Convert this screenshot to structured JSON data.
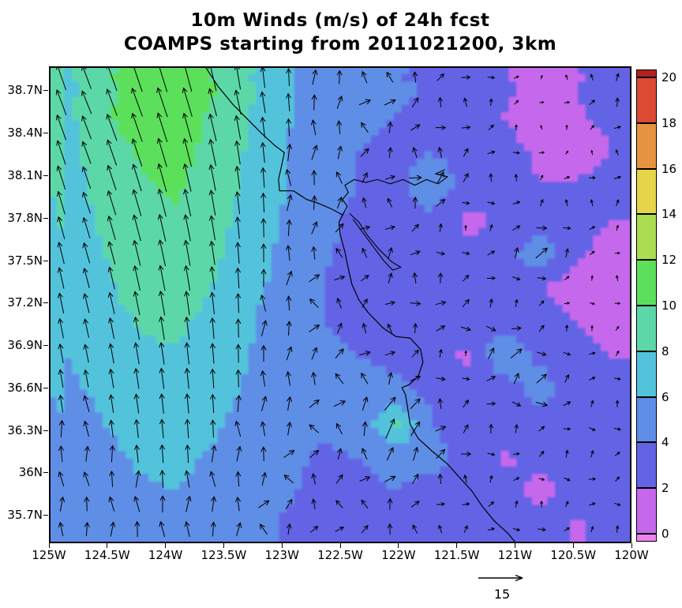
{
  "chart_data": {
    "type": "heatmap",
    "title": "10m Winds (m/s) of 24h fcst",
    "subtitle": "COAMPS starting from 2011021200, 3km",
    "units": "m/s",
    "lon_range": [
      -125,
      -120
    ],
    "lat_range": [
      35.5,
      38.87
    ],
    "lon_tick_labels": [
      "125W",
      "124.5W",
      "124W",
      "123.5W",
      "123W",
      "122.5W",
      "122W",
      "121.5W",
      "121W",
      "120.5W",
      "120W"
    ],
    "lon_tick_values": [
      -125,
      -124.5,
      -124,
      -123.5,
      -123,
      -122.5,
      -122,
      -121.5,
      -121,
      -120.5,
      -120
    ],
    "lat_tick_labels": [
      "38.7N",
      "38.4N",
      "38.1N",
      "37.8N",
      "37.5N",
      "37.2N",
      "36.9N",
      "36.6N",
      "36.3N",
      "36N",
      "35.7N"
    ],
    "lat_tick_values": [
      38.7,
      38.4,
      38.1,
      37.8,
      37.5,
      37.2,
      36.9,
      36.6,
      36.3,
      36.0,
      35.7
    ],
    "colorbar": {
      "tick_labels": [
        "0",
        "2",
        "4",
        "6",
        "8",
        "10",
        "12",
        "14",
        "16",
        "18",
        "20"
      ],
      "tick_values": [
        0,
        2,
        4,
        6,
        8,
        10,
        12,
        14,
        16,
        18,
        20
      ],
      "interval_colors": [
        "#c668ec",
        "#6363e6",
        "#5e8ee6",
        "#53c3dc",
        "#5cd8a8",
        "#5ce05c",
        "#aade50",
        "#e6d44a",
        "#e69440",
        "#dc4a34"
      ],
      "under_color": "#ee82f0",
      "over_color": "#b22222"
    },
    "reference_vector": {
      "label": "15",
      "value_ms": 15
    },
    "wind_speed_grid_ms": {
      "order": "rows north to south, cols west to east",
      "values": [
        [
          7.5,
          9.5,
          10.5,
          10.8,
          10.2,
          8.5,
          6.5,
          5.0,
          4.2,
          4.5,
          3.8,
          3.2,
          2.2,
          1.8,
          2.0,
          4.0
        ],
        [
          7.5,
          9.8,
          10.8,
          10.8,
          9.8,
          8.0,
          6.2,
          5.0,
          4.4,
          4.0,
          3.4,
          3.0,
          2.0,
          1.3,
          1.8,
          2.4
        ],
        [
          7.2,
          9.2,
          10.2,
          10.5,
          9.5,
          7.8,
          6.0,
          5.2,
          4.0,
          3.6,
          3.9,
          3.2,
          2.4,
          1.8,
          1.2,
          2.0
        ],
        [
          7.0,
          8.8,
          9.8,
          10.2,
          9.2,
          7.5,
          6.0,
          4.8,
          4.0,
          3.4,
          5.4,
          3.4,
          2.6,
          2.0,
          2.2,
          2.6
        ],
        [
          6.8,
          8.4,
          9.6,
          9.8,
          8.8,
          7.2,
          5.8,
          4.4,
          3.6,
          3.2,
          3.5,
          1.4,
          2.6,
          3.0,
          2.2,
          2.0
        ],
        [
          6.6,
          8.0,
          9.2,
          9.4,
          8.4,
          7.0,
          5.5,
          4.2,
          3.6,
          4.0,
          3.0,
          2.6,
          3.0,
          5.5,
          2.2,
          1.6
        ],
        [
          6.4,
          7.6,
          8.8,
          9.0,
          8.0,
          6.6,
          5.2,
          4.0,
          3.2,
          3.6,
          4.0,
          3.0,
          2.6,
          2.0,
          1.3,
          2.0
        ],
        [
          6.2,
          7.2,
          8.2,
          8.4,
          7.4,
          6.2,
          5.0,
          4.0,
          3.6,
          3.2,
          3.6,
          4.0,
          3.0,
          2.6,
          2.0,
          1.6
        ],
        [
          6.0,
          6.8,
          7.6,
          7.8,
          7.0,
          6.0,
          5.0,
          4.4,
          4.0,
          3.6,
          3.2,
          1.5,
          6.0,
          3.4,
          2.2,
          2.0
        ],
        [
          5.6,
          6.4,
          7.0,
          7.2,
          6.6,
          5.8,
          5.0,
          4.2,
          4.8,
          4.4,
          3.6,
          3.0,
          2.6,
          5.3,
          2.4,
          2.2
        ],
        [
          5.2,
          6.0,
          6.6,
          6.8,
          6.2,
          5.4,
          4.8,
          4.2,
          4.4,
          8.5,
          4.0,
          3.2,
          3.4,
          2.6,
          2.2,
          2.4
        ],
        [
          5.0,
          5.6,
          6.2,
          6.4,
          5.8,
          5.2,
          4.4,
          3.8,
          4.0,
          4.6,
          4.8,
          3.4,
          1.8,
          2.4,
          2.8,
          2.0
        ],
        [
          4.8,
          5.2,
          5.8,
          6.0,
          5.4,
          4.8,
          4.2,
          3.6,
          3.6,
          4.0,
          3.0,
          2.4,
          2.6,
          1.6,
          2.4,
          2.0
        ],
        [
          4.6,
          5.0,
          5.4,
          5.6,
          5.0,
          4.6,
          3.8,
          3.2,
          3.4,
          3.8,
          3.0,
          2.6,
          2.2,
          2.8,
          1.8,
          2.4
        ]
      ]
    },
    "wind_direction_grid_deg": {
      "order": "rows north to south, cols west to east; degrees clockwise from north, direction arrows point toward",
      "values": [
        [
          -22,
          -20,
          -15,
          -8,
          5,
          25,
          40,
          35,
          25
        ],
        [
          -20,
          -18,
          -12,
          -4,
          10,
          30,
          45,
          40,
          30
        ],
        [
          -18,
          -15,
          -10,
          0,
          15,
          35,
          55,
          45,
          35
        ],
        [
          -15,
          -12,
          -8,
          2,
          18,
          40,
          60,
          55,
          45
        ],
        [
          -12,
          -10,
          -5,
          4,
          15,
          35,
          65,
          60,
          50
        ],
        [
          -10,
          -8,
          -4,
          2,
          12,
          30,
          55,
          65,
          55
        ],
        [
          -8,
          -5,
          -2,
          0,
          8,
          25,
          45,
          60,
          65
        ],
        [
          -5,
          -3,
          0,
          3,
          8,
          20,
          40,
          55,
          60
        ]
      ]
    },
    "coastline_lonlat": [
      [
        -123.66,
        38.87
      ],
      [
        -123.55,
        38.73
      ],
      [
        -123.42,
        38.6
      ],
      [
        -123.3,
        38.5
      ],
      [
        -123.18,
        38.4
      ],
      [
        -123.06,
        38.31
      ],
      [
        -122.98,
        38.26
      ],
      [
        -123.0,
        38.18
      ],
      [
        -123.03,
        38.07
      ],
      [
        -123.02,
        37.99
      ],
      [
        -122.9,
        37.99
      ],
      [
        -122.79,
        37.93
      ],
      [
        -122.68,
        37.9
      ],
      [
        -122.57,
        37.86
      ],
      [
        -122.48,
        37.82
      ],
      [
        -122.51,
        37.77
      ],
      [
        -122.5,
        37.68
      ],
      [
        -122.46,
        37.56
      ],
      [
        -122.43,
        37.44
      ],
      [
        -122.4,
        37.33
      ],
      [
        -122.34,
        37.22
      ],
      [
        -122.26,
        37.13
      ],
      [
        -122.13,
        37.02
      ],
      [
        -122.02,
        36.96
      ],
      [
        -121.9,
        36.95
      ],
      [
        -121.81,
        36.87
      ],
      [
        -121.79,
        36.78
      ],
      [
        -121.83,
        36.68
      ],
      [
        -121.91,
        36.62
      ],
      [
        -121.97,
        36.6
      ],
      [
        -121.94,
        36.55
      ],
      [
        -121.92,
        36.45
      ],
      [
        -121.9,
        36.34
      ],
      [
        -121.83,
        36.24
      ],
      [
        -121.71,
        36.15
      ],
      [
        -121.58,
        36.06
      ],
      [
        -121.47,
        35.96
      ],
      [
        -121.37,
        35.87
      ],
      [
        -121.28,
        35.76
      ],
      [
        -121.18,
        35.66
      ],
      [
        -121.06,
        35.57
      ],
      [
        -120.99,
        35.5
      ]
    ],
    "sf_bay_delta_lonlat": [
      [
        -122.48,
        37.82
      ],
      [
        -122.44,
        37.88
      ],
      [
        -122.48,
        37.93
      ],
      [
        -122.43,
        37.98
      ],
      [
        -122.46,
        38.03
      ],
      [
        -122.38,
        38.07
      ],
      [
        -122.28,
        38.05
      ],
      [
        -122.18,
        38.07
      ],
      [
        -122.07,
        38.04
      ],
      [
        -121.96,
        38.07
      ],
      [
        -121.86,
        38.03
      ],
      [
        -121.76,
        38.07
      ],
      [
        -121.66,
        38.04
      ],
      [
        -121.58,
        38.09
      ],
      [
        -121.68,
        38.11
      ],
      [
        -121.6,
        38.14
      ]
    ],
    "south_bay_lonlat": [
      [
        -122.42,
        37.83
      ],
      [
        -122.34,
        37.77
      ],
      [
        -122.27,
        37.68
      ],
      [
        -122.17,
        37.58
      ],
      [
        -122.06,
        37.49
      ],
      [
        -121.98,
        37.45
      ],
      [
        -122.05,
        37.43
      ],
      [
        -122.13,
        37.5
      ],
      [
        -122.22,
        37.6
      ],
      [
        -122.31,
        37.7
      ],
      [
        -122.39,
        37.79
      ]
    ]
  }
}
